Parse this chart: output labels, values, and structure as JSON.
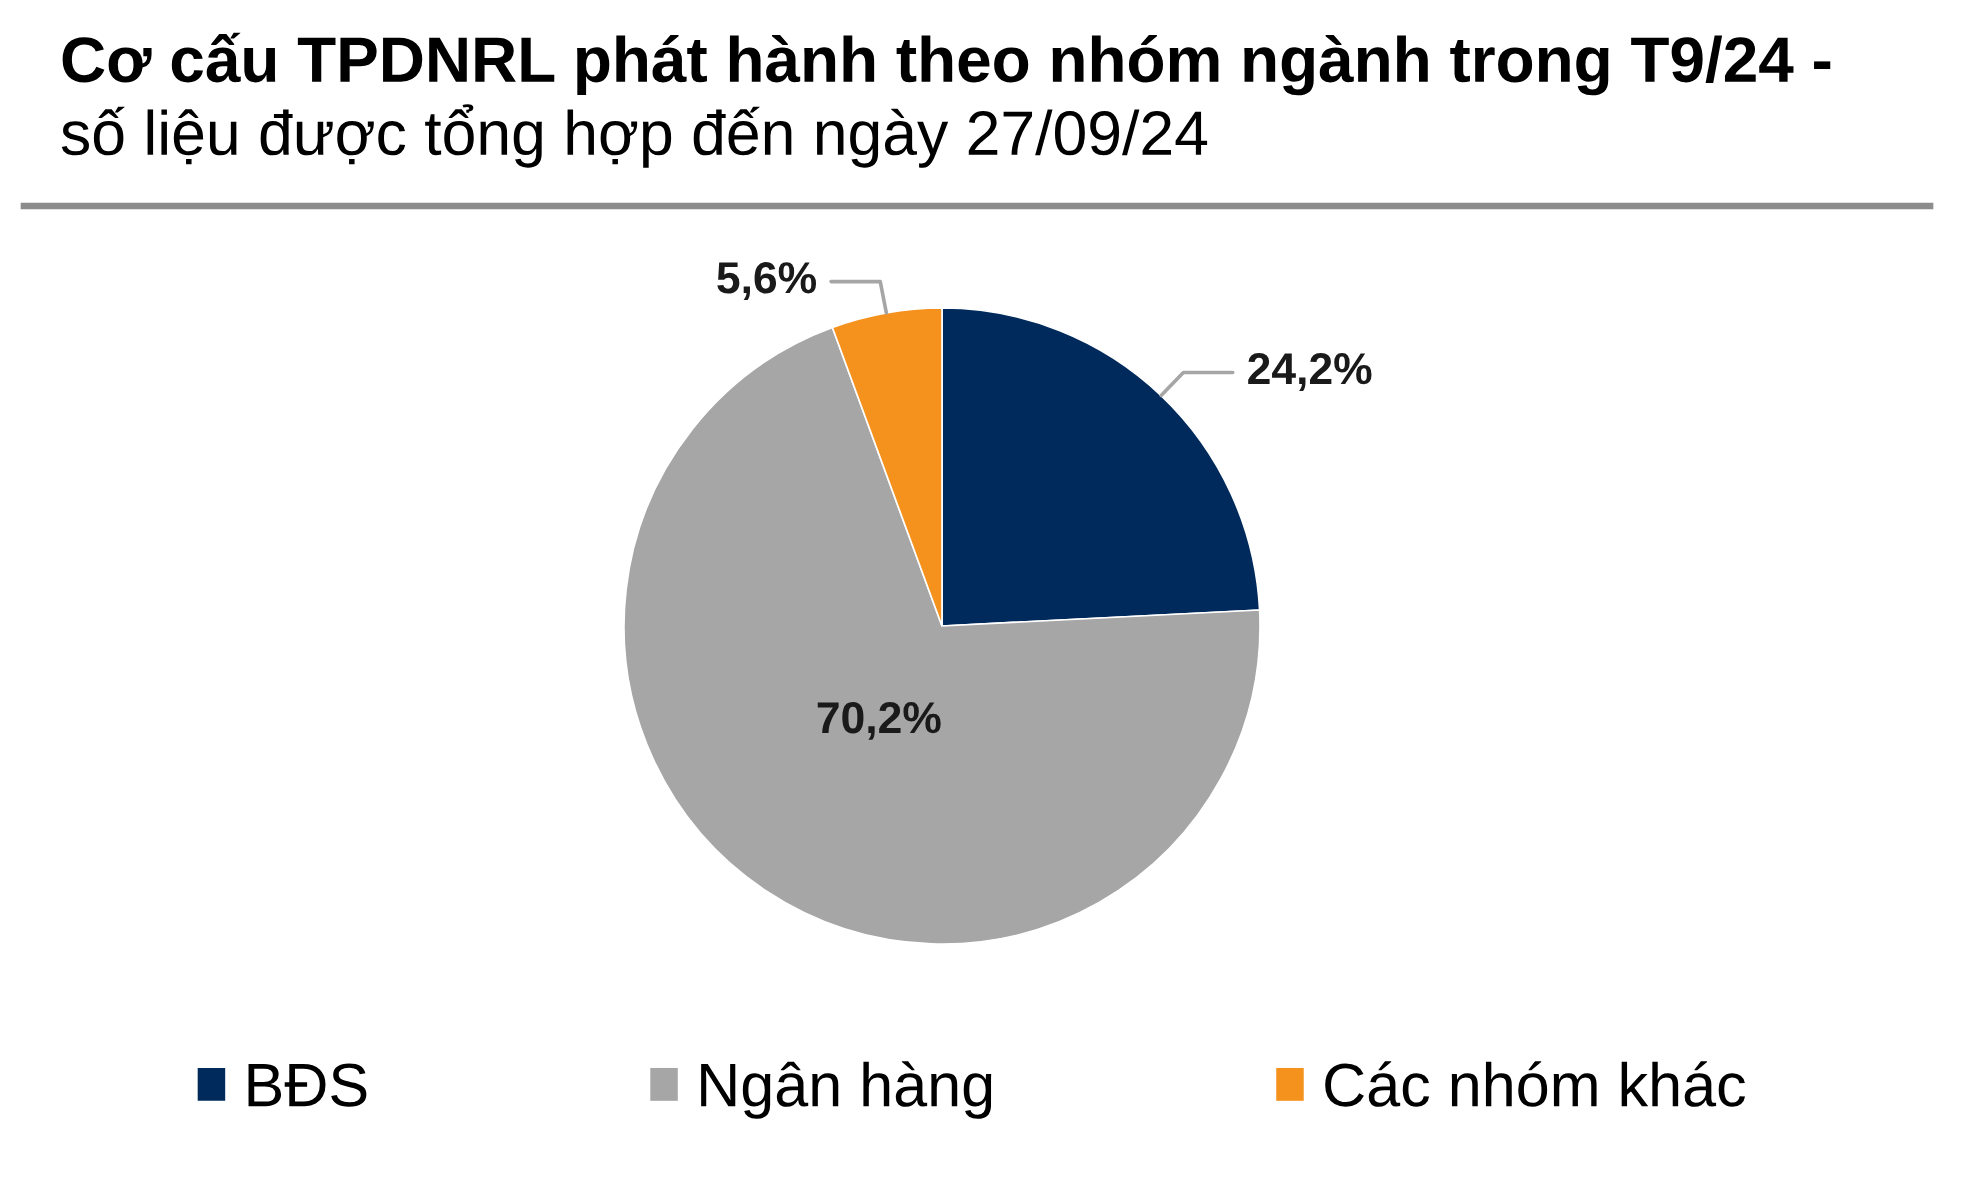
{
  "chart_data": {
    "type": "pie",
    "title": "Cơ cấu TPDNRL phát hành theo nhóm ngành trong T9/24 -",
    "subtitle": "số liệu được tổng hợp đến ngày 27/09/24",
    "categories": [
      "BĐS",
      "Ngân hàng",
      "Các nhóm khác"
    ],
    "values": [
      24.2,
      70.2,
      5.6
    ],
    "colors": [
      "#002a5c",
      "#a6a6a6",
      "#f5921e"
    ],
    "value_labels": [
      "24,2%",
      "70,2%",
      "5,6%"
    ],
    "legend": "bottom"
  }
}
